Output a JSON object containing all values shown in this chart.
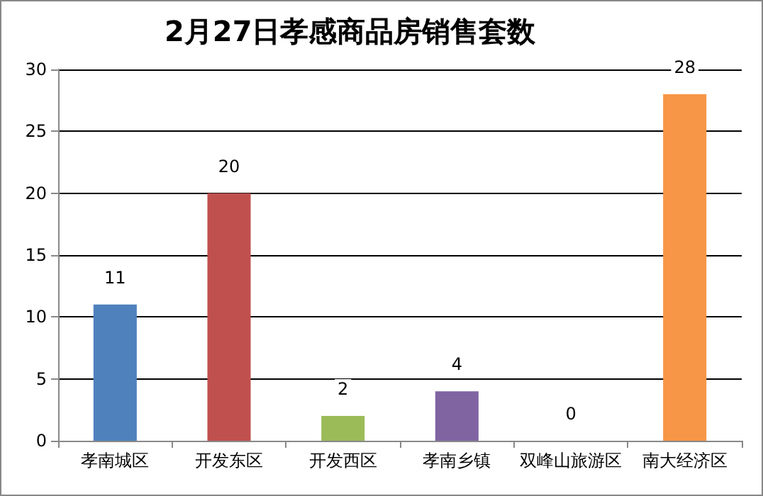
{
  "chart_data": {
    "type": "bar",
    "title": "2月27日孝感商品房销售套数",
    "categories": [
      "孝南城区",
      "开发东区",
      "开发西区",
      "孝南乡镇",
      "双峰山旅游区",
      "南大经济区"
    ],
    "values": [
      11,
      20,
      2,
      4,
      0,
      28
    ],
    "colors": [
      "#4f81bd",
      "#c0504d",
      "#9bbb59",
      "#8064a2",
      "#4bacc6",
      "#f79646"
    ],
    "ylim": [
      0,
      30
    ],
    "yticks": [
      0,
      5,
      10,
      15,
      20,
      25,
      30
    ],
    "grid": "y",
    "data_labels": true
  }
}
